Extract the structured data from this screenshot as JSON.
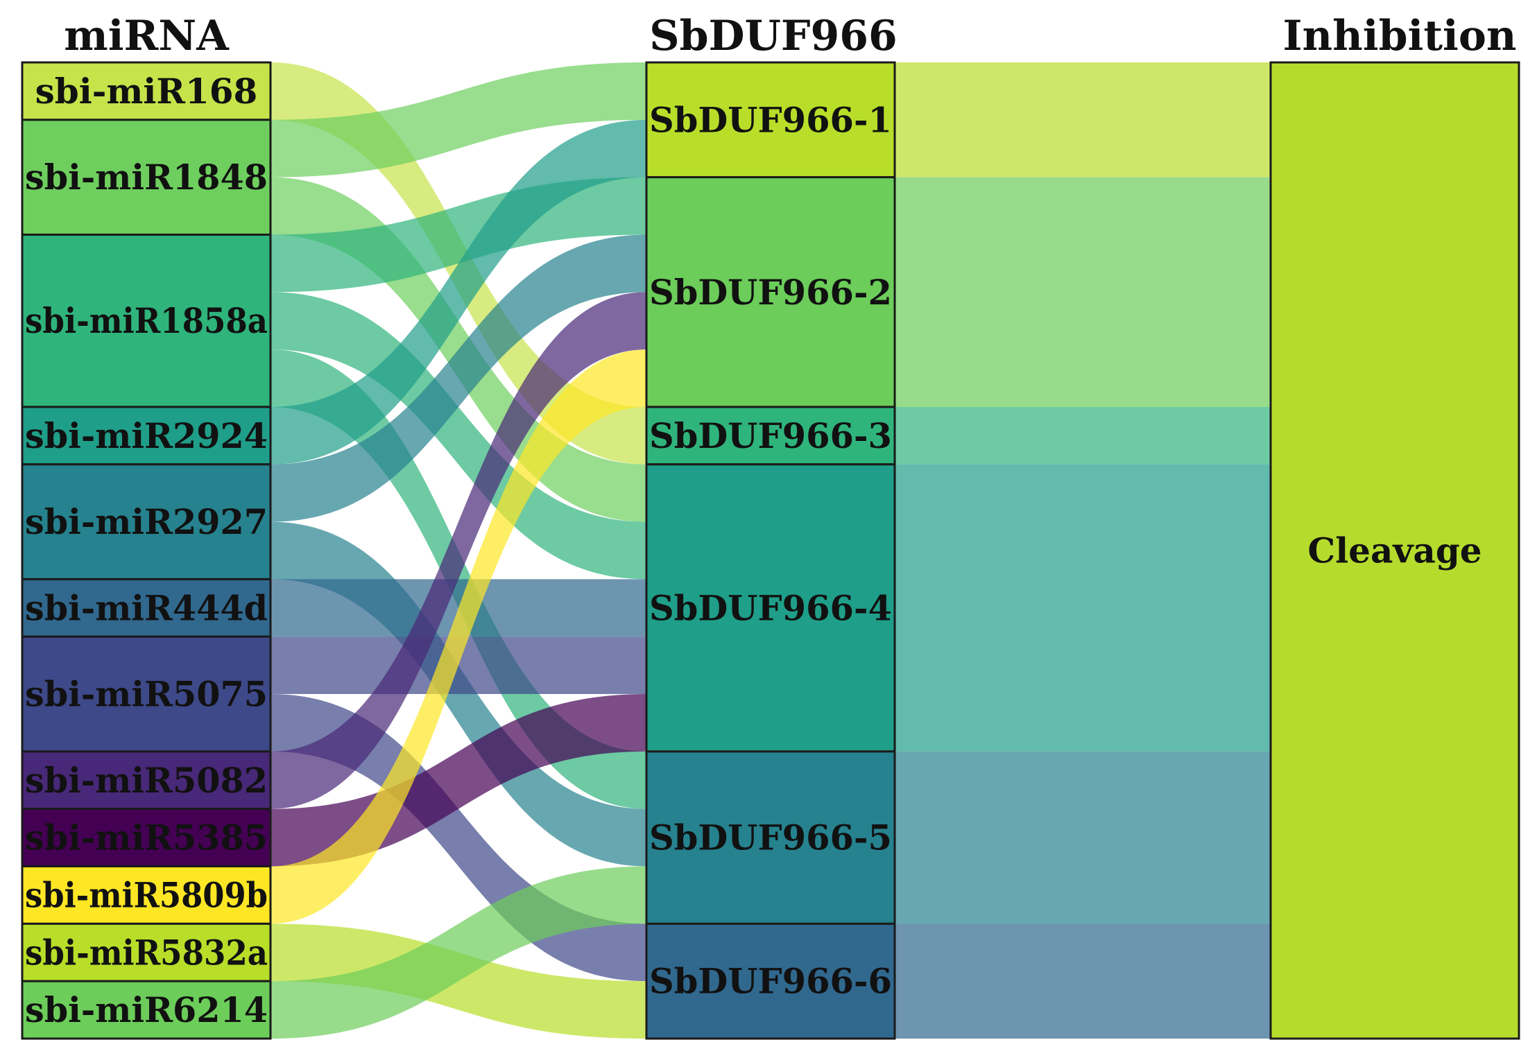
{
  "columns": {
    "mirna": "miRNA",
    "gene": "SbDUF966",
    "inhibition": "Inhibition"
  },
  "mirnas": [
    {
      "name": "sbi-miR168",
      "color": "#c6e34a"
    },
    {
      "name": "sbi-miR1848",
      "color": "#6ecf5e"
    },
    {
      "name": "sbi-miR1858a",
      "color": "#2fb47c"
    },
    {
      "name": "sbi-miR2924",
      "color": "#1f9e89"
    },
    {
      "name": "sbi-miR2927",
      "color": "#26828e"
    },
    {
      "name": "sbi-miR444d",
      "color": "#31688e"
    },
    {
      "name": "sbi-miR5075",
      "color": "#3e4989"
    },
    {
      "name": "sbi-miR5082",
      "color": "#482878"
    },
    {
      "name": "sbi-miR5385",
      "color": "#440154"
    },
    {
      "name": "sbi-miR5809b",
      "color": "#fde725"
    },
    {
      "name": "sbi-miR5832a",
      "color": "#b8de29"
    },
    {
      "name": "sbi-miR6214",
      "color": "#6ccd5a"
    }
  ],
  "genes": [
    {
      "name": "SbDUF966-1",
      "color": "#b8de29"
    },
    {
      "name": "SbDUF966-2",
      "color": "#6ccd5a"
    },
    {
      "name": "SbDUF966-3",
      "color": "#2fb47c"
    },
    {
      "name": "SbDUF966-4",
      "color": "#1f9e89"
    },
    {
      "name": "SbDUF966-5",
      "color": "#26828e"
    },
    {
      "name": "SbDUF966-6",
      "color": "#31688e"
    }
  ],
  "inhibition": {
    "name": "Cleavage",
    "color": "#b5dc2d"
  },
  "links": [
    {
      "source": "sbi-miR168",
      "target": "SbDUF966-3",
      "value": 1
    },
    {
      "source": "sbi-miR1848",
      "target": "SbDUF966-1",
      "value": 1
    },
    {
      "source": "sbi-miR1848",
      "target": "SbDUF966-4",
      "value": 1
    },
    {
      "source": "sbi-miR1858a",
      "target": "SbDUF966-2",
      "value": 1
    },
    {
      "source": "sbi-miR1858a",
      "target": "SbDUF966-4",
      "value": 1
    },
    {
      "source": "sbi-miR1858a",
      "target": "SbDUF966-5",
      "value": 1
    },
    {
      "source": "sbi-miR2924",
      "target": "SbDUF966-1",
      "value": 1
    },
    {
      "source": "sbi-miR2927",
      "target": "SbDUF966-2",
      "value": 1
    },
    {
      "source": "sbi-miR2927",
      "target": "SbDUF966-5",
      "value": 1
    },
    {
      "source": "sbi-miR444d",
      "target": "SbDUF966-4",
      "value": 1
    },
    {
      "source": "sbi-miR5075",
      "target": "SbDUF966-4",
      "value": 1
    },
    {
      "source": "sbi-miR5075",
      "target": "SbDUF966-6",
      "value": 1
    },
    {
      "source": "sbi-miR5082",
      "target": "SbDUF966-2",
      "value": 1
    },
    {
      "source": "sbi-miR5385",
      "target": "SbDUF966-4",
      "value": 1
    },
    {
      "source": "sbi-miR5809b",
      "target": "SbDUF966-2",
      "value": 1
    },
    {
      "source": "sbi-miR5832a",
      "target": "SbDUF966-6",
      "value": 1
    },
    {
      "source": "sbi-miR6214",
      "target": "SbDUF966-5",
      "value": 1
    }
  ]
}
